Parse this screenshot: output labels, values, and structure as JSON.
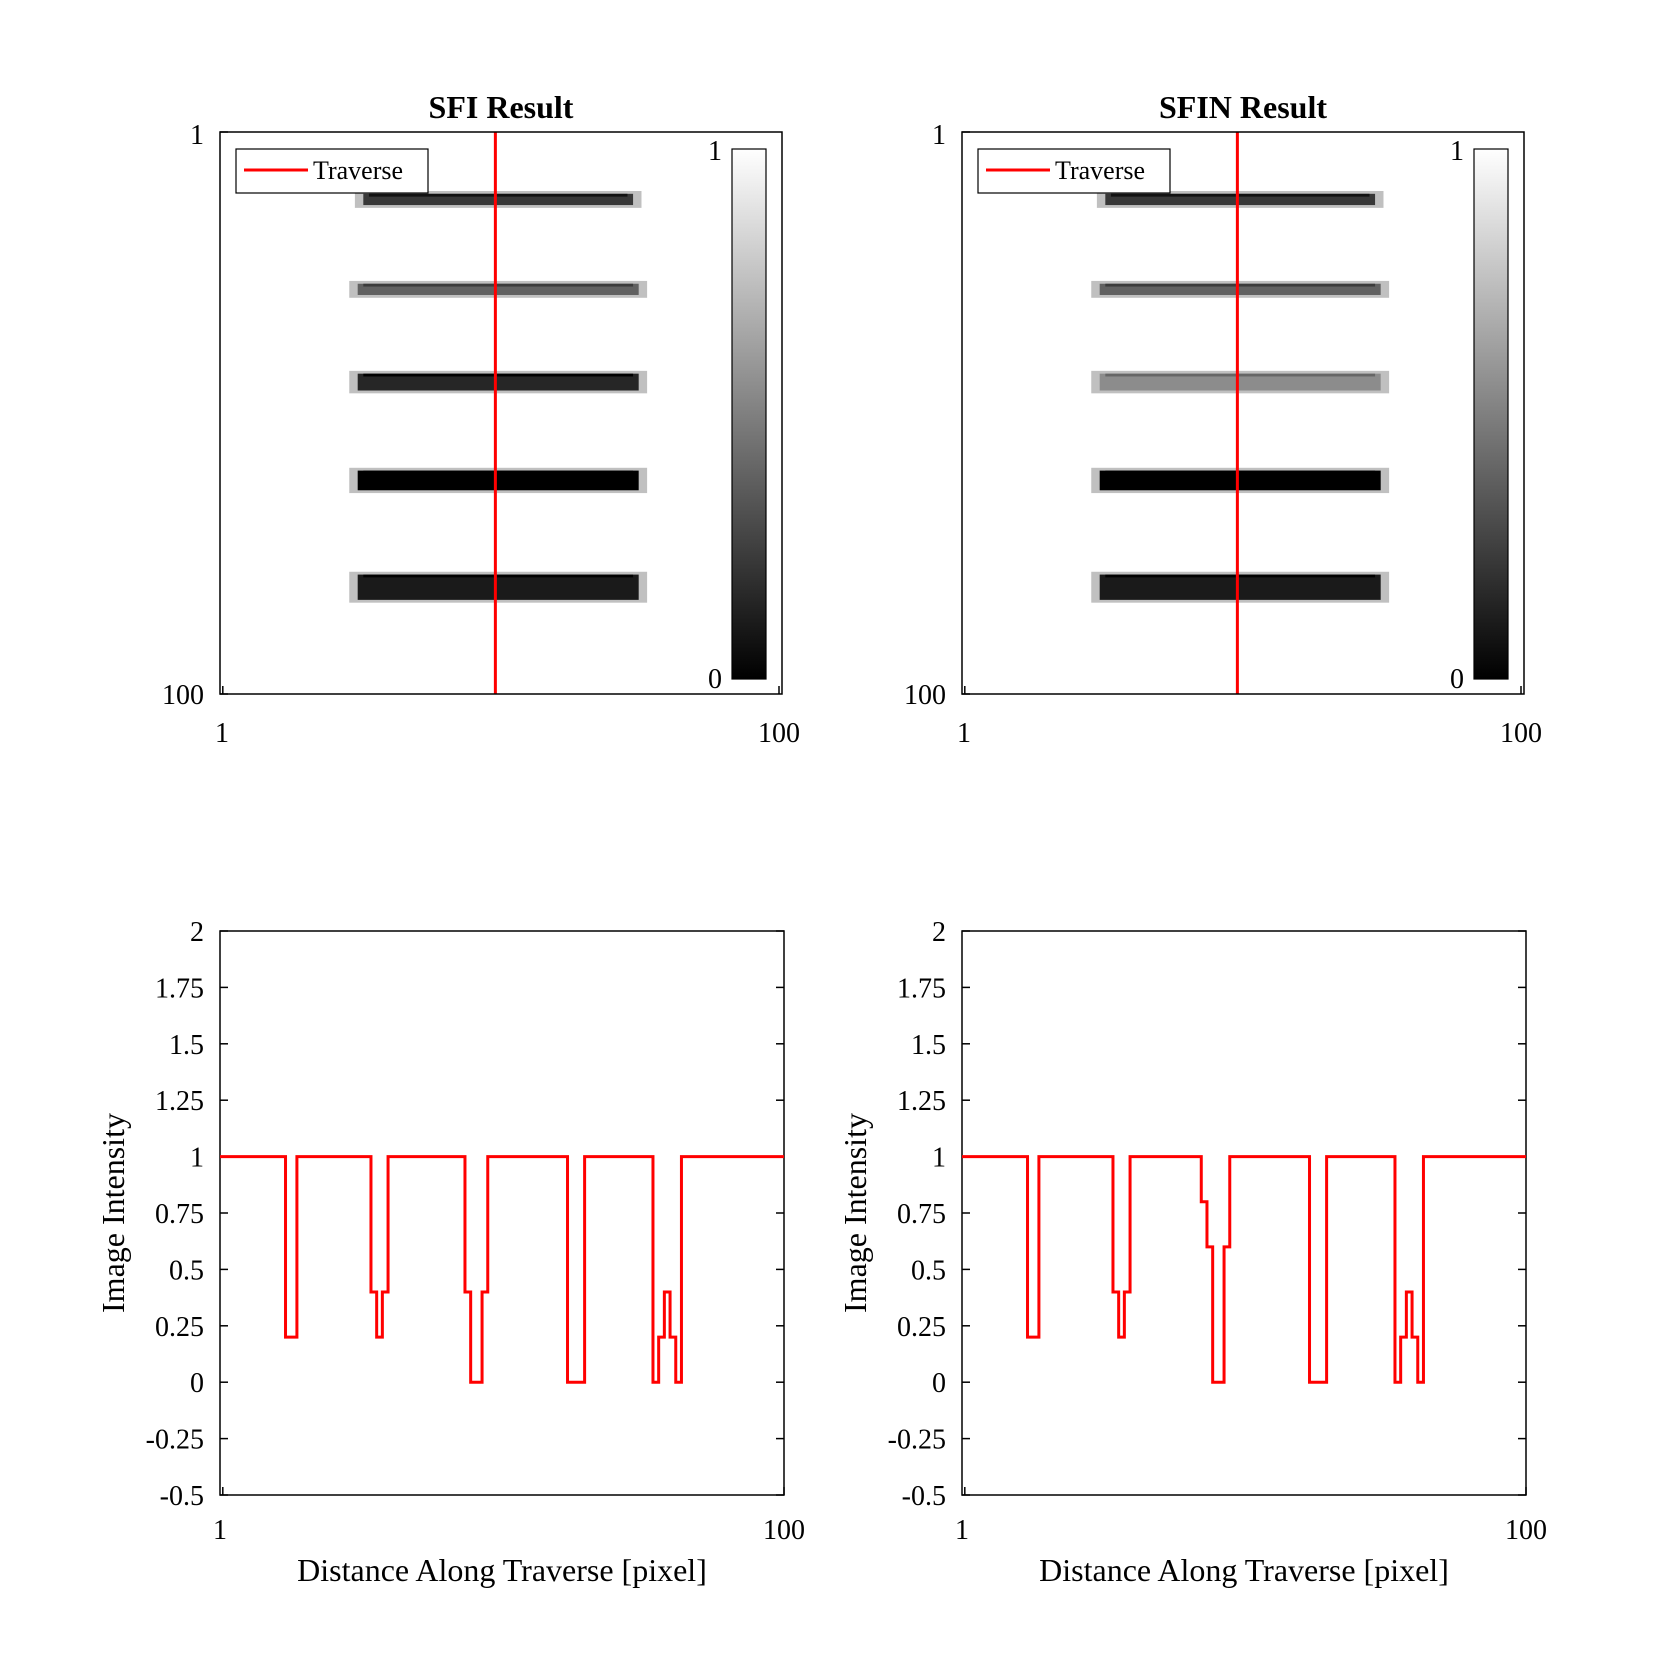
{
  "colors": {
    "traverse": "#ff0000",
    "axis": "#000000",
    "background": "#ffffff"
  },
  "chart_data": [
    {
      "type": "heatmap",
      "title": "SFI Result",
      "x_ticks": [
        "1",
        "100"
      ],
      "y_ticks": [
        "1",
        "100"
      ],
      "xlim": [
        1,
        100
      ],
      "ylim": [
        1,
        100
      ],
      "y_direction": "reversed",
      "colorbar": {
        "ticks": [
          "1",
          "0"
        ],
        "range": [
          0,
          1
        ],
        "colormap": "gray"
      },
      "legend": {
        "entries": [
          "Traverse"
        ],
        "placement": "top-left"
      },
      "traverse_x": 50,
      "stripes": [
        {
          "row_center": 13,
          "x_start": 25,
          "x_end": 75,
          "thickness": 2,
          "level": 0.22
        },
        {
          "row_center": 29,
          "x_start": 24,
          "x_end": 76,
          "thickness": 2,
          "level": 0.38
        },
        {
          "row_center": 45.5,
          "x_start": 24,
          "x_end": 76,
          "thickness": 3,
          "level": 0.15
        },
        {
          "row_center": 63,
          "x_start": 24,
          "x_end": 76,
          "thickness": 3.5,
          "level": 0.0
        },
        {
          "row_center": 82,
          "x_start": 24,
          "x_end": 76,
          "thickness": 4.5,
          "level": 0.1
        }
      ]
    },
    {
      "type": "heatmap",
      "title": "SFIN Result",
      "x_ticks": [
        "1",
        "100"
      ],
      "y_ticks": [
        "1",
        "100"
      ],
      "xlim": [
        1,
        100
      ],
      "ylim": [
        1,
        100
      ],
      "y_direction": "reversed",
      "colorbar": {
        "ticks": [
          "1",
          "0"
        ],
        "range": [
          0,
          1
        ],
        "colormap": "gray"
      },
      "legend": {
        "entries": [
          "Traverse"
        ],
        "placement": "top-left"
      },
      "traverse_x": 50,
      "stripes": [
        {
          "row_center": 13,
          "x_start": 25,
          "x_end": 75,
          "thickness": 2,
          "level": 0.22
        },
        {
          "row_center": 29,
          "x_start": 24,
          "x_end": 76,
          "thickness": 2,
          "level": 0.38
        },
        {
          "row_center": 45.5,
          "x_start": 24,
          "x_end": 76,
          "thickness": 3,
          "level": 0.55
        },
        {
          "row_center": 63,
          "x_start": 24,
          "x_end": 76,
          "thickness": 3.5,
          "level": 0.0
        },
        {
          "row_center": 82,
          "x_start": 24,
          "x_end": 76,
          "thickness": 4.5,
          "level": 0.1
        }
      ]
    },
    {
      "type": "line",
      "xlabel": "Distance Along Traverse [pixel]",
      "ylabel": "Image Intensity",
      "xlim": [
        1,
        100
      ],
      "ylim": [
        -0.5,
        2
      ],
      "x_ticks": [
        "1",
        "100"
      ],
      "y_ticks": [
        "2",
        "1.75",
        "1.5",
        "1.25",
        "1",
        "0.75",
        "0.5",
        "0.25",
        "0",
        "-0.25",
        "-0.5"
      ],
      "series": [
        {
          "x": [
            1,
            12.5,
            12.5,
            14.5,
            14.5,
            27.5,
            27.5,
            28.5,
            28.5,
            29.5,
            29.5,
            30.5,
            30.5,
            44,
            44,
            45,
            45,
            47,
            47,
            48,
            48,
            62,
            62,
            65,
            65,
            77,
            77,
            78,
            78,
            79,
            79,
            80,
            80,
            81,
            81,
            82,
            82,
            100
          ],
          "y": [
            1,
            1,
            0.2,
            0.2,
            1,
            1,
            0.4,
            0.4,
            0.2,
            0.2,
            0.4,
            0.4,
            1,
            1,
            0.4,
            0.4,
            0,
            0,
            0.4,
            0.4,
            1,
            1,
            0,
            0,
            1,
            1,
            0,
            0,
            0.2,
            0.2,
            0.4,
            0.4,
            0.2,
            0.2,
            0,
            0,
            1,
            1
          ]
        }
      ]
    },
    {
      "type": "line",
      "xlabel": "Distance Along Traverse [pixel]",
      "ylabel": "Image Intensity",
      "xlim": [
        1,
        100
      ],
      "ylim": [
        -0.5,
        2
      ],
      "x_ticks": [
        "1",
        "100"
      ],
      "y_ticks": [
        "2",
        "1.75",
        "1.5",
        "1.25",
        "1",
        "0.75",
        "0.5",
        "0.25",
        "0",
        "-0.25",
        "-0.5"
      ],
      "series": [
        {
          "x": [
            1,
            12.5,
            12.5,
            14.5,
            14.5,
            27.5,
            27.5,
            28.5,
            28.5,
            29.5,
            29.5,
            30.5,
            30.5,
            43,
            43,
            44,
            44,
            45,
            45,
            47,
            47,
            48,
            48,
            62,
            62,
            65,
            65,
            77,
            77,
            78,
            78,
            79,
            79,
            80,
            80,
            81,
            81,
            82,
            82,
            100
          ],
          "y": [
            1,
            1,
            0.2,
            0.2,
            1,
            1,
            0.4,
            0.4,
            0.2,
            0.2,
            0.4,
            0.4,
            1,
            1,
            0.8,
            0.8,
            0.6,
            0.6,
            0,
            0,
            0.6,
            0.6,
            1,
            1,
            0,
            0,
            1,
            1,
            0,
            0,
            0.2,
            0.2,
            0.4,
            0.4,
            0.2,
            0.2,
            0,
            0,
            1,
            1
          ]
        }
      ]
    }
  ]
}
